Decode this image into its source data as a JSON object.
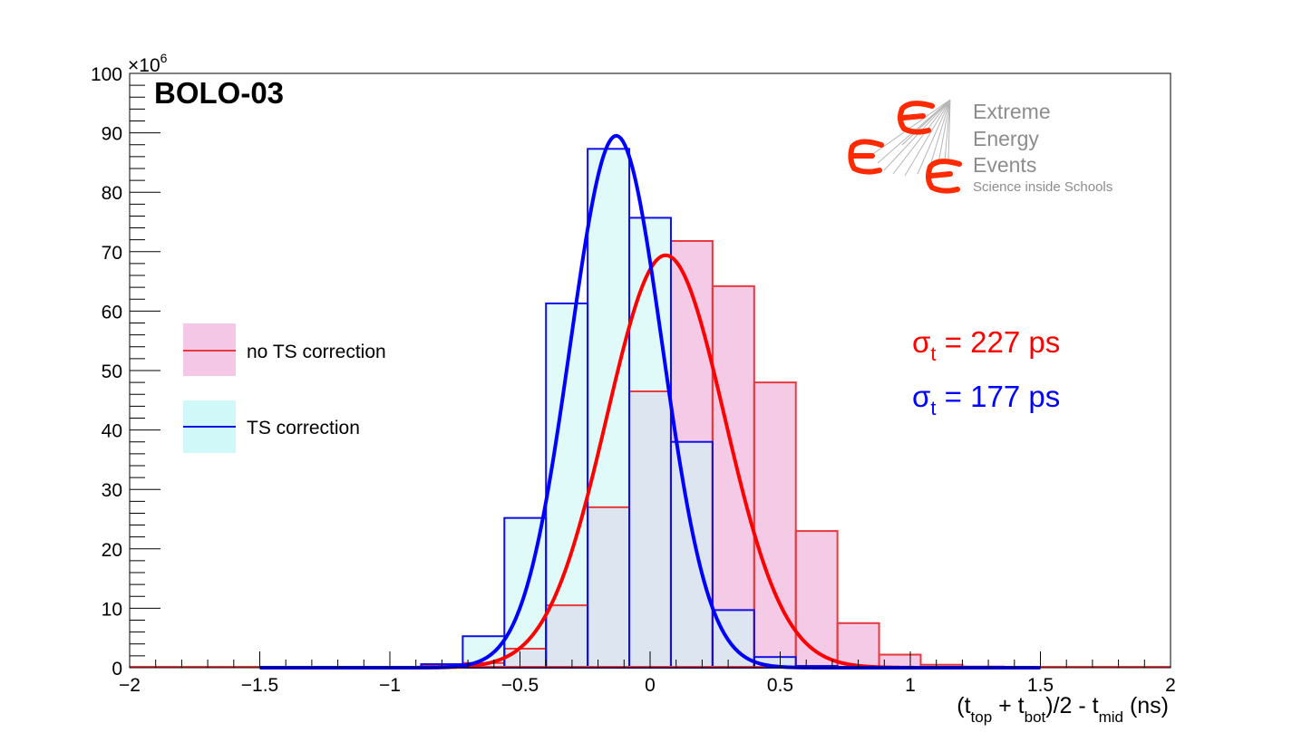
{
  "chart_data": {
    "type": "histogram",
    "title": "BOLO-03",
    "xlabel": {
      "open": "(t",
      "sub1": "top",
      "mid1": " + t",
      "sub2": "bot",
      "mid2": ")/2 - t",
      "sub3": "mid",
      "close": " (ns)"
    },
    "ylabel": "",
    "y_multiplier": "×10",
    "y_multiplier_exp": "6",
    "xlim": [
      -2,
      2
    ],
    "ylim": [
      0,
      100
    ],
    "x_ticks": [
      -2,
      -1.5,
      -1,
      -0.5,
      0,
      0.5,
      1,
      1.5,
      2
    ],
    "x_tick_labels": [
      "−2",
      "−1.5",
      "−1",
      "−0.5",
      "0",
      "0.5",
      "1",
      "1.5",
      "2"
    ],
    "y_ticks": [
      0,
      10,
      20,
      30,
      40,
      50,
      60,
      70,
      80,
      90,
      100
    ],
    "y_tick_labels": [
      "0",
      "10",
      "20",
      "30",
      "40",
      "50",
      "60",
      "70",
      "80",
      "90",
      "100"
    ],
    "bin_edges": [
      -2.0,
      -1.84,
      -1.68,
      -1.52,
      -1.36,
      -1.2,
      -1.04,
      -0.88,
      -0.72,
      -0.56,
      -0.4,
      -0.24,
      -0.08,
      0.08,
      0.24,
      0.4,
      0.56,
      0.72,
      0.88,
      1.04,
      1.2,
      1.36,
      1.52,
      1.68,
      1.84,
      2.0
    ],
    "series": [
      {
        "name": "no TS correction",
        "color": "#e8393c",
        "fill": "#f0b4dd",
        "values": [
          0,
          0,
          0,
          0,
          0,
          0,
          0,
          0.3,
          0.8,
          3.2,
          10.5,
          27,
          46.5,
          71.8,
          64.2,
          48,
          23,
          7.5,
          2.2,
          0.5,
          0.2,
          0,
          0,
          0,
          0
        ],
        "fit_color": "#ff0000",
        "fit": {
          "amplitude": 69.4,
          "mean": 0.06,
          "sigma": 0.227
        }
      },
      {
        "name": "TS correction",
        "color": "#1010e6",
        "fill": "#ccf7f7",
        "values": [
          0,
          0,
          0,
          0,
          0,
          0,
          0,
          0.6,
          5.3,
          25.2,
          61.3,
          87.3,
          75.7,
          38,
          9.7,
          1.8,
          0.3,
          0,
          0,
          0,
          0,
          0,
          0,
          0,
          0
        ],
        "fit_color": "#0000ff",
        "fit": {
          "amplitude": 89.5,
          "mean": -0.13,
          "sigma": 0.177
        }
      }
    ],
    "annotations": [
      {
        "symbol": "σ",
        "sub": "t",
        "text": " = 227 ps",
        "color": "#ff0000"
      },
      {
        "symbol": "σ",
        "sub": "t",
        "text": " = 177 ps",
        "color": "#0000ff"
      }
    ],
    "legend_placement": "middle-left"
  },
  "logo": {
    "line1": "Extreme",
    "line2": "Energy",
    "line3": "Events",
    "tagline": "Science inside Schools",
    "mark_color": "#ff2a00",
    "text_color": "#8c8c8c"
  }
}
